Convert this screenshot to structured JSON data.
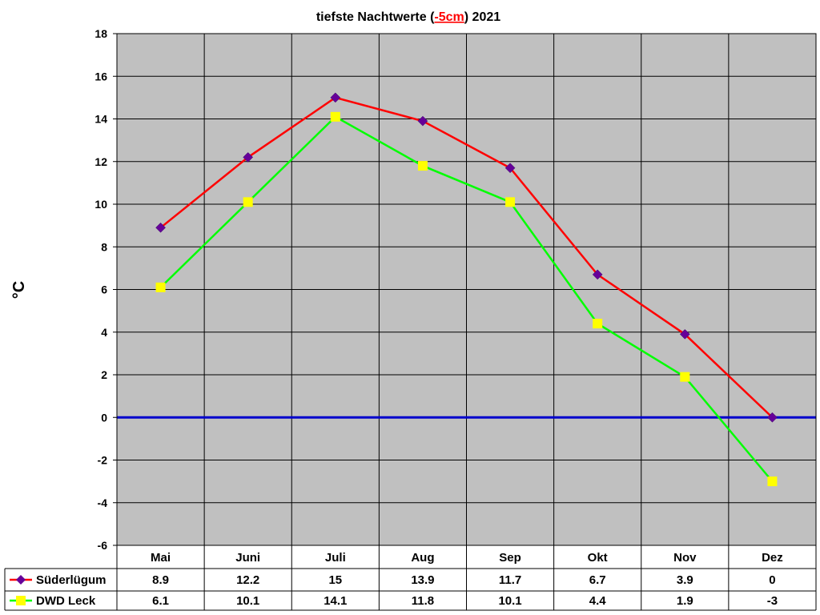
{
  "chart_data": {
    "type": "line",
    "title_parts": [
      "tiefste Nachtwerte (",
      "-5cm",
      ") 2021"
    ],
    "ylabel": "°C",
    "xlabel": "",
    "ylim": [
      -6,
      18
    ],
    "yticks": [
      -6,
      -4,
      -2,
      0,
      2,
      4,
      6,
      8,
      10,
      12,
      14,
      16,
      18
    ],
    "categories": [
      "Mai",
      "Juni",
      "Juli",
      "Aug",
      "Sep",
      "Okt",
      "Nov",
      "Dez"
    ],
    "grid": true,
    "zero_line": true,
    "legend_placement": "data-table-left",
    "series": [
      {
        "name": "Süderlügum",
        "values": [
          8.9,
          12.2,
          15,
          13.9,
          11.7,
          6.7,
          3.9,
          0
        ],
        "labels": [
          "8.9",
          "12.2",
          "15",
          "13.9",
          "11.7",
          "6.7",
          "3.9",
          "0"
        ],
        "line_color": "#ff0000",
        "marker_color": "#660099",
        "marker": "diamond"
      },
      {
        "name": "DWD Leck",
        "values": [
          6.1,
          10.1,
          14.1,
          11.8,
          10.1,
          4.4,
          1.9,
          -3
        ],
        "labels": [
          "6.1",
          "10.1",
          "14.1",
          "11.8",
          "10.1",
          "4.4",
          "1.9",
          "-3"
        ],
        "line_color": "#00ff00",
        "marker_color": "#ffff00",
        "marker": "square"
      }
    ],
    "colors": {
      "plot_background": "#c0c0c0",
      "grid": "#000000",
      "zero_line": "#0000cc"
    }
  }
}
